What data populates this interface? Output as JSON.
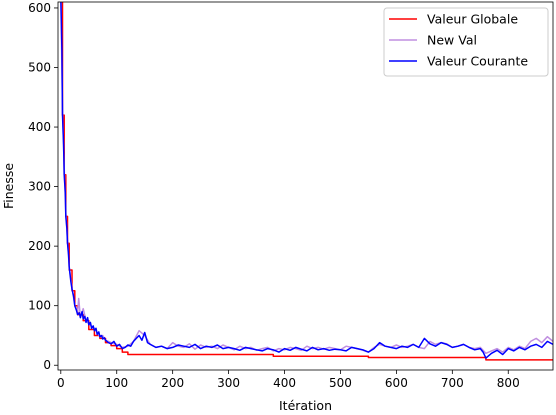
{
  "chart_data": {
    "type": "line",
    "title": "",
    "xlabel": "Itération",
    "ylabel": "Finesse",
    "xlim": [
      -5,
      880
    ],
    "ylim": [
      -8,
      610
    ],
    "xticks": [
      0,
      100,
      200,
      300,
      400,
      500,
      600,
      700,
      800
    ],
    "yticks": [
      0,
      100,
      200,
      300,
      400,
      500,
      600
    ],
    "grid": false,
    "legend_position": "top-right",
    "series": [
      {
        "name": "Valeur Globale",
        "color": "#ff0000",
        "step": true,
        "x": [
          0,
          3,
          6,
          9,
          12,
          15,
          20,
          25,
          30,
          40,
          50,
          60,
          70,
          80,
          90,
          100,
          110,
          120,
          240,
          380,
          550,
          760,
          880
        ],
        "y": [
          620,
          420,
          320,
          250,
          205,
          160,
          125,
          100,
          85,
          75,
          60,
          50,
          45,
          38,
          33,
          28,
          22,
          18,
          18,
          15,
          13,
          9,
          9
        ]
      },
      {
        "name": "New Val",
        "color": "#c08fe0",
        "x": [
          0,
          3,
          6,
          9,
          12,
          15,
          20,
          25,
          30,
          32,
          35,
          40,
          45,
          50,
          55,
          60,
          65,
          70,
          75,
          80,
          90,
          100,
          110,
          120,
          130,
          140,
          150,
          160,
          170,
          180,
          190,
          200,
          210,
          220,
          230,
          240,
          250,
          260,
          270,
          280,
          290,
          300,
          310,
          320,
          330,
          340,
          350,
          360,
          370,
          380,
          390,
          400,
          410,
          420,
          430,
          440,
          450,
          460,
          470,
          480,
          490,
          500,
          510,
          520,
          530,
          540,
          550,
          560,
          570,
          580,
          590,
          600,
          610,
          620,
          630,
          640,
          650,
          660,
          670,
          680,
          690,
          700,
          710,
          720,
          730,
          740,
          750,
          760,
          770,
          780,
          790,
          800,
          810,
          820,
          830,
          840,
          850,
          860,
          870,
          880
        ],
        "y": [
          620,
          430,
          330,
          255,
          210,
          165,
          130,
          100,
          90,
          112,
          80,
          95,
          75,
          70,
          65,
          62,
          55,
          48,
          50,
          42,
          38,
          35,
          30,
          32,
          40,
          58,
          50,
          35,
          30,
          32,
          28,
          38,
          32,
          30,
          36,
          27,
          34,
          30,
          32,
          28,
          34,
          30,
          26,
          32,
          28,
          30,
          25,
          28,
          30,
          24,
          28,
          26,
          30,
          28,
          25,
          32,
          28,
          30,
          27,
          30,
          28,
          26,
          32,
          30,
          28,
          25,
          22,
          30,
          35,
          32,
          30,
          34,
          30,
          32,
          35,
          30,
          28,
          40,
          35,
          38,
          36,
          30,
          32,
          35,
          30,
          28,
          30,
          20,
          24,
          28,
          22,
          30,
          26,
          32,
          28,
          40,
          45,
          38,
          48,
          40
        ]
      },
      {
        "name": "Valeur Courante",
        "color": "#0000ff",
        "x": [
          0,
          2,
          3,
          5,
          6,
          8,
          9,
          11,
          12,
          14,
          15,
          18,
          20,
          23,
          25,
          28,
          30,
          33,
          35,
          38,
          40,
          43,
          45,
          48,
          50,
          53,
          55,
          58,
          60,
          63,
          65,
          68,
          70,
          73,
          75,
          78,
          80,
          85,
          90,
          95,
          100,
          105,
          110,
          115,
          120,
          125,
          130,
          135,
          140,
          145,
          150,
          155,
          160,
          170,
          180,
          190,
          200,
          210,
          220,
          230,
          240,
          250,
          260,
          270,
          280,
          290,
          300,
          310,
          320,
          330,
          340,
          350,
          360,
          370,
          380,
          390,
          400,
          410,
          420,
          430,
          440,
          450,
          460,
          470,
          480,
          490,
          500,
          510,
          520,
          530,
          540,
          550,
          560,
          570,
          580,
          590,
          600,
          610,
          620,
          630,
          640,
          650,
          660,
          670,
          680,
          690,
          700,
          710,
          720,
          730,
          740,
          750,
          755,
          760,
          770,
          780,
          790,
          800,
          810,
          820,
          830,
          840,
          850,
          860,
          870,
          880
        ],
        "y": [
          620,
          530,
          420,
          370,
          320,
          290,
          250,
          230,
          205,
          185,
          165,
          140,
          128,
          115,
          100,
          92,
          85,
          88,
          80,
          90,
          78,
          82,
          72,
          80,
          68,
          72,
          62,
          66,
          58,
          62,
          52,
          56,
          48,
          50,
          44,
          46,
          42,
          38,
          36,
          40,
          32,
          35,
          28,
          30,
          34,
          32,
          40,
          45,
          50,
          42,
          55,
          38,
          35,
          30,
          32,
          28,
          30,
          34,
          32,
          30,
          35,
          28,
          32,
          30,
          34,
          28,
          30,
          28,
          25,
          30,
          28,
          26,
          24,
          28,
          26,
          22,
          28,
          25,
          30,
          27,
          24,
          30,
          26,
          28,
          25,
          27,
          26,
          24,
          30,
          28,
          26,
          22,
          28,
          38,
          32,
          30,
          28,
          32,
          30,
          35,
          30,
          45,
          36,
          32,
          38,
          35,
          30,
          32,
          35,
          30,
          26,
          28,
          22,
          12,
          20,
          25,
          18,
          28,
          24,
          30,
          26,
          32,
          35,
          30,
          40,
          35
        ]
      }
    ]
  }
}
